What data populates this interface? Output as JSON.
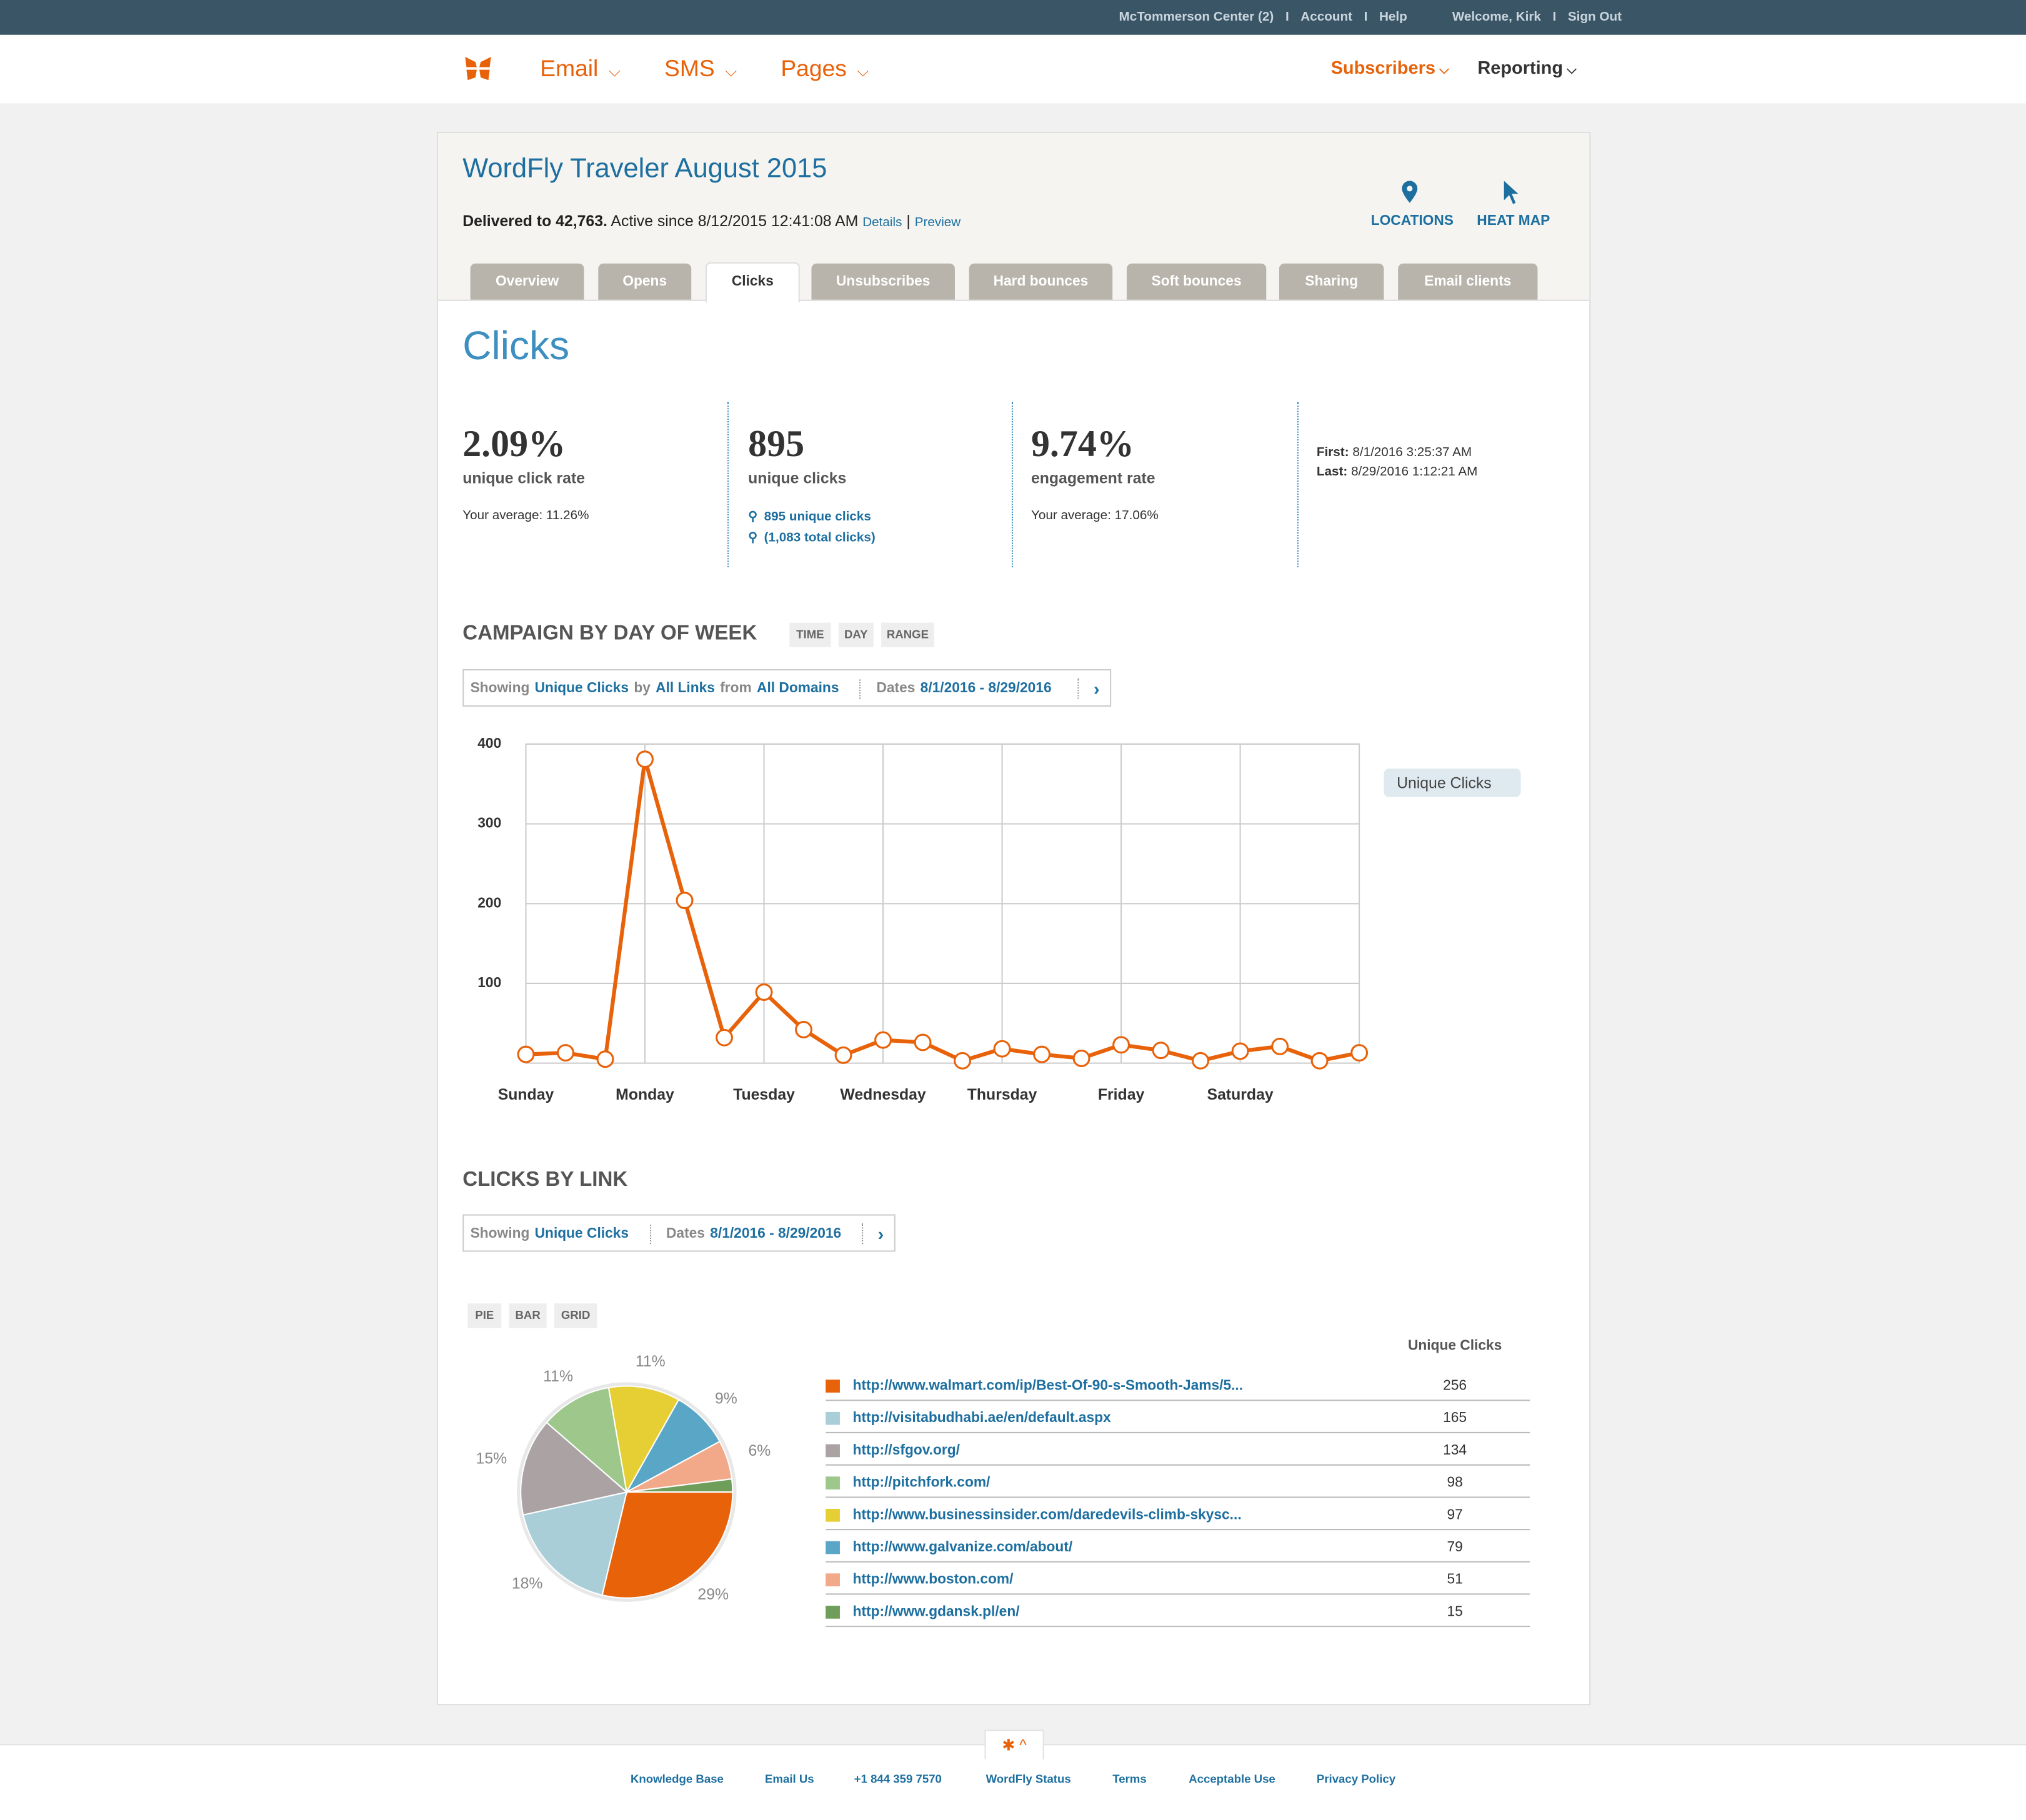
{
  "top_bar": {
    "links": [
      "McTommerson Center (2)",
      "Account",
      "Help",
      "Welcome, Kirk",
      "Sign Out"
    ]
  },
  "nav": {
    "left": [
      "Email",
      "SMS",
      "Pages"
    ],
    "right": [
      "Subscribers",
      "Reporting"
    ]
  },
  "campaign": {
    "title": "WordFly Traveler August 2015",
    "delivered": "Delivered to 42,763.",
    "active": "Active since 8/12/2015 12:41:08 AM",
    "details": "Details",
    "preview": "Preview",
    "actions": [
      "LOCATIONS",
      "HEAT MAP"
    ]
  },
  "tabs": {
    "items": [
      "Overview",
      "Opens",
      "Clicks",
      "Unsubscribes",
      "Hard bounces",
      "Soft bounces",
      "Sharing",
      "Email clients"
    ],
    "active": 2
  },
  "page_title": "Clicks",
  "stats": {
    "items": [
      {
        "value": "2.09%",
        "label": "unique click rate",
        "note": "Your average: 11.26%"
      },
      {
        "value": "895",
        "label": "unique clicks",
        "links": [
          "895 unique clicks",
          "(1,083 total clicks)"
        ]
      },
      {
        "value": "9.74%",
        "label": "engagement rate",
        "note": "Your average: 17.06%"
      }
    ],
    "first": {
      "label": "First:",
      "value": "8/1/2016 3:25:37 AM"
    },
    "last": {
      "label": "Last:",
      "value": "8/29/2016 1:12:21 AM"
    }
  },
  "day_section": {
    "title": "CAMPAIGN BY DAY OF WEEK",
    "views": [
      "TIME",
      "DAY",
      "RANGE"
    ],
    "filter": {
      "showing": "Showing",
      "metric": "Unique Clicks",
      "by": "by",
      "links": "All Links",
      "from": "from",
      "domains": "All Domains",
      "dates_label": "Dates",
      "dates": "8/1/2016 - 8/29/2016"
    }
  },
  "day_chart": {
    "type": "line",
    "categories": [
      "Sunday",
      null,
      null,
      "Monday",
      null,
      null,
      "Tuesday",
      null,
      null,
      "Wednesday",
      null,
      null,
      "Thursday",
      null,
      null,
      "Friday",
      null,
      null,
      "Saturday",
      null,
      null,
      null
    ],
    "series": [
      {
        "name": "Unique Clicks",
        "color": "#e8620a",
        "values": [
          11,
          13,
          5,
          381,
          204,
          32,
          89,
          42,
          10,
          29,
          26,
          3,
          18,
          11,
          6,
          23,
          16,
          3,
          15,
          21,
          3,
          13
        ]
      }
    ],
    "ylim": [
      0,
      400
    ],
    "yticks": [
      100,
      200,
      300,
      400
    ],
    "grid": true
  },
  "link_section": {
    "title": "CLICKS BY LINK",
    "views": [
      "PIE",
      "BAR",
      "GRID"
    ],
    "filter": {
      "showing": "Showing",
      "metric": "Unique Clicks",
      "dates_label": "Dates",
      "dates": "8/1/2016 - 8/29/2016"
    }
  },
  "link_chart": {
    "type": "pie",
    "categories": [
      "http://www.walmart.com/ip/Best-Of-90-s-Smooth-Jams/5...",
      "http://visitabudhabi.ae/en/default.aspx",
      "http://sfgov.org/",
      "http://pitchfork.com/",
      "http://www.businessinsider.com/daredevils-climb-skysc...",
      "http://www.galvanize.com/about/",
      "http://www.boston.com/",
      "http://www.gdansk.pl/en/"
    ],
    "values": [
      29,
      18,
      15,
      11,
      11,
      9,
      6,
      2
    ],
    "value_labels": [
      "29%",
      "18%",
      "15%",
      "11%",
      "11%",
      "9%",
      "6%",
      null
    ],
    "colors": [
      "#e8620a",
      "#a9ced8",
      "#aba3a3",
      "#9ec78c",
      "#e6cf34",
      "#5aa6c6",
      "#f2a98a",
      "#6f9d5a"
    ]
  },
  "link_table": {
    "column": "Unique Clicks",
    "counts": [
      256,
      165,
      134,
      98,
      97,
      79,
      51,
      15
    ]
  },
  "footer": {
    "links": [
      "Knowledge Base",
      "Email Us",
      "+1 844 359 7570",
      "WordFly Status",
      "Terms",
      "Acceptable Use",
      "Privacy Policy"
    ]
  }
}
